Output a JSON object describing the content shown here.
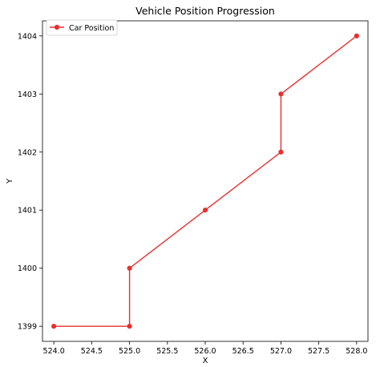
{
  "chart_data": {
    "type": "line",
    "title": "Vehicle Position Progression",
    "xlabel": "X",
    "ylabel": "Y",
    "xlim": [
      523.85,
      528.15
    ],
    "ylim": [
      1398.74,
      1404.26
    ],
    "xticks": [
      524.0,
      524.5,
      525.0,
      525.5,
      526.0,
      526.5,
      527.0,
      527.5,
      528.0
    ],
    "xtick_labels": [
      "524.0",
      "524.5",
      "525.0",
      "525.5",
      "526.0",
      "526.5",
      "527.0",
      "527.5",
      "528.0"
    ],
    "yticks": [
      1399,
      1400,
      1401,
      1402,
      1403,
      1404
    ],
    "ytick_labels": [
      "1399",
      "1400",
      "1401",
      "1402",
      "1403",
      "1404"
    ],
    "grid": false,
    "legend": "top-left",
    "series": [
      {
        "name": "Car Position",
        "color": "#e8302f",
        "marker": "circle",
        "x": [
          524,
          525,
          525,
          526,
          527,
          527,
          528
        ],
        "y": [
          1399,
          1399,
          1400,
          1401,
          1402,
          1403,
          1404
        ]
      }
    ]
  }
}
